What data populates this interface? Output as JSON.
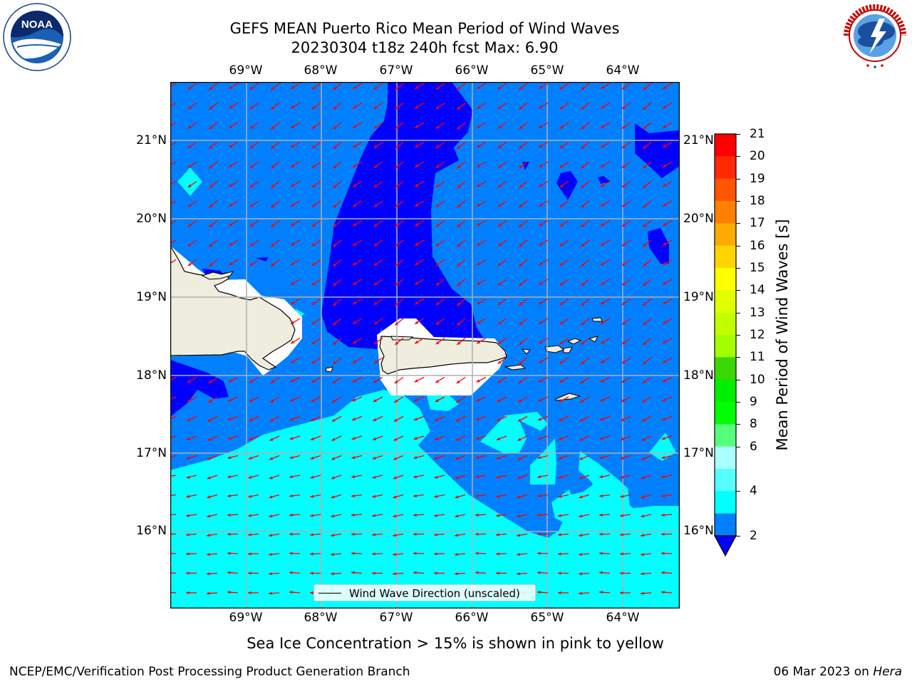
{
  "title": {
    "line1": "GEFS MEAN Puerto Rico Mean Period of Wind Waves",
    "line2": "20230304 t18z 240h fcst   Max: 6.90"
  },
  "map": {
    "lon_labels": [
      "69°W",
      "68°W",
      "67°W",
      "66°W",
      "65°W",
      "64°W"
    ],
    "lat_labels": [
      "21°N",
      "20°N",
      "19°N",
      "18°N",
      "17°N",
      "16°N"
    ],
    "region": "Puerto Rico / Hispaniola / Virgin Islands",
    "extent": {
      "lon_min": -69.88,
      "lon_max": -63.25,
      "lat_min": 15.05,
      "lat_max": 21.8
    }
  },
  "legend": {
    "label": "Wind Wave Direction (unscaled)"
  },
  "colorbar": {
    "label": "Mean Period of Wind Waves [s]",
    "ticks": [
      "21",
      "20",
      "19",
      "18",
      "17",
      "16",
      "15",
      "14",
      "13",
      "12",
      "11",
      "10",
      "9",
      "8",
      "6",
      "4",
      "2"
    ],
    "colors": [
      "#ff0000",
      "#ff2a00",
      "#ff5500",
      "#ff7f00",
      "#ffaa00",
      "#ffd400",
      "#ffff00",
      "#e0ff00",
      "#c1ff00",
      "#a3ff00",
      "#3ad700",
      "#00ee00",
      "#00ff00",
      "#55ff7a",
      "#aaffff",
      "#55ffff",
      "#00ffff",
      "#0080ff"
    ],
    "under_color": "#0000ff"
  },
  "colors": {
    "period_lt_2": "#0000ff",
    "period_2_4": "#0080ff",
    "period_4_6": "#00ffff",
    "land": "#efedde",
    "arrows": "#ff0000"
  },
  "subtitle": "Sea Ice Concentration > 15% is shown in pink to yellow",
  "footer": {
    "left": "NCEP/EMC/Verification Post Processing Product Generation Branch",
    "right_prefix": "06 Mar 2023 on ",
    "right_host": "Hera"
  },
  "logos": {
    "noaa_text": "NOAA",
    "noaa_ring": "NATIONAL OCEANIC AND ATMOSPHERIC ADMINISTRATION · U.S. DEPARTMENT OF COMMERCE",
    "nws_ring": "NATIONAL WEATHER SERVICE"
  }
}
